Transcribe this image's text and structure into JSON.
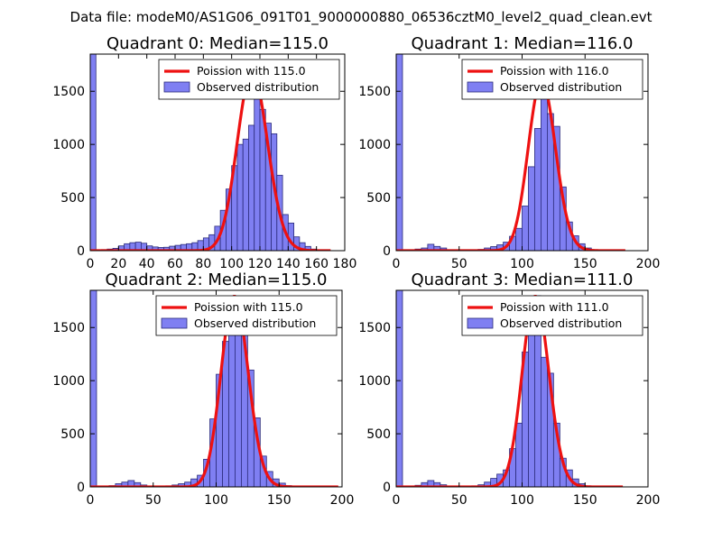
{
  "chart_data": {
    "type": "histogram",
    "suptitle": "Data file: modeM0/AS1G06_091T01_9000000880_06536cztM0_level2_quad_clean.evt",
    "subplots": [
      {
        "title": "Quadrant 0: Median=115.0",
        "median": 115.0,
        "xlim": [
          0,
          180
        ],
        "ylim": [
          0,
          1850
        ],
        "xticks": [
          0,
          20,
          40,
          60,
          80,
          100,
          120,
          140,
          160,
          180
        ],
        "yticks": [
          0,
          500,
          1000,
          1500
        ],
        "bin_width": 4,
        "hist": {
          "0": 1850,
          "4": 8,
          "8": 10,
          "12": 15,
          "16": 22,
          "20": 45,
          "24": 65,
          "28": 75,
          "32": 80,
          "36": 70,
          "40": 45,
          "44": 35,
          "48": 30,
          "52": 32,
          "56": 42,
          "60": 50,
          "64": 58,
          "68": 65,
          "72": 75,
          "76": 95,
          "80": 120,
          "84": 150,
          "88": 230,
          "92": 380,
          "96": 580,
          "100": 800,
          "104": 1000,
          "108": 1050,
          "112": 1180,
          "116": 1500,
          "120": 1330,
          "124": 1200,
          "128": 1100,
          "132": 710,
          "136": 340,
          "140": 260,
          "144": 130,
          "148": 75,
          "152": 40,
          "156": 15,
          "160": 8,
          "164": 3
        },
        "curve_xmax": 170,
        "legend": [
          "Poission with 115.0",
          "Observed distribution"
        ]
      },
      {
        "title": "Quadrant 1: Median=116.0",
        "median": 116.0,
        "xlim": [
          0,
          200
        ],
        "ylim": [
          0,
          1850
        ],
        "xticks": [
          0,
          50,
          100,
          150,
          200
        ],
        "yticks": [
          0,
          500,
          1000,
          1500
        ],
        "bin_width": 5,
        "hist": {
          "0": 1850,
          "5": 5,
          "10": 8,
          "15": 15,
          "20": 25,
          "25": 60,
          "30": 40,
          "35": 25,
          "40": 8,
          "45": 4,
          "50": 3,
          "55": 5,
          "60": 8,
          "65": 12,
          "70": 25,
          "75": 38,
          "80": 55,
          "85": 80,
          "90": 135,
          "95": 210,
          "100": 420,
          "105": 790,
          "110": 1150,
          "115": 1430,
          "120": 1290,
          "125": 1170,
          "130": 600,
          "135": 270,
          "140": 140,
          "145": 65,
          "150": 25,
          "155": 8
        },
        "curve_xmax": 182,
        "legend": [
          "Poission with 116.0",
          "Observed distribution"
        ]
      },
      {
        "title": "Quadrant 2: Median=115.0",
        "median": 115.0,
        "xlim": [
          0,
          200
        ],
        "ylim": [
          0,
          1850
        ],
        "xticks": [
          0,
          50,
          100,
          150,
          200
        ],
        "yticks": [
          0,
          500,
          1000,
          1500
        ],
        "bin_width": 5,
        "hist": {
          "0": 1850,
          "5": 4,
          "10": 6,
          "15": 12,
          "20": 30,
          "25": 45,
          "30": 60,
          "35": 40,
          "40": 18,
          "45": 6,
          "50": 4,
          "55": 6,
          "60": 10,
          "65": 18,
          "70": 30,
          "75": 45,
          "80": 75,
          "85": 110,
          "90": 260,
          "95": 640,
          "100": 1060,
          "105": 1370,
          "110": 1760,
          "115": 1720,
          "120": 1470,
          "125": 1100,
          "130": 650,
          "135": 290,
          "140": 145,
          "145": 75,
          "150": 35,
          "155": 12,
          "160": 4
        },
        "curve_xmax": 197,
        "legend": [
          "Poission with 115.0",
          "Observed distribution"
        ]
      },
      {
        "title": "Quadrant 3: Median=111.0",
        "median": 111.0,
        "xlim": [
          0,
          200
        ],
        "ylim": [
          0,
          1850
        ],
        "xticks": [
          0,
          50,
          100,
          150,
          200
        ],
        "yticks": [
          0,
          500,
          1000,
          1500
        ],
        "bin_width": 5,
        "hist": {
          "0": 1850,
          "5": 4,
          "10": 8,
          "15": 15,
          "20": 40,
          "25": 60,
          "30": 40,
          "35": 20,
          "40": 8,
          "45": 4,
          "50": 3,
          "55": 5,
          "60": 10,
          "65": 20,
          "70": 45,
          "75": 80,
          "80": 120,
          "85": 160,
          "90": 360,
          "95": 600,
          "100": 1270,
          "105": 1650,
          "110": 1800,
          "115": 1220,
          "120": 1070,
          "125": 600,
          "130": 270,
          "135": 160,
          "140": 75,
          "145": 30,
          "150": 10
        },
        "curve_xmax": 180,
        "legend": [
          "Poission with 111.0",
          "Observed distribution"
        ]
      }
    ]
  },
  "colors": {
    "bar_fill": "#7f7ff2",
    "bar_edge": "#2a2a7a",
    "curve": "#ee1111",
    "axis": "#000000"
  }
}
